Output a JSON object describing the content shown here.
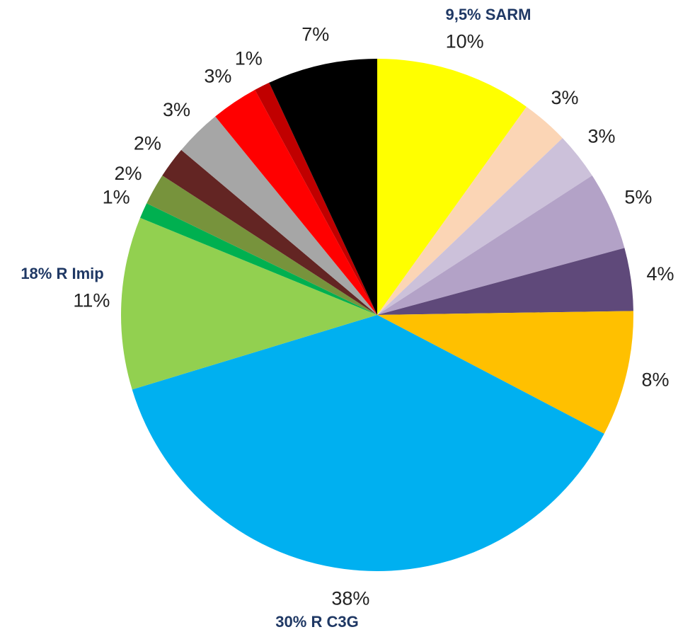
{
  "chart_data": {
    "type": "pie",
    "values": [
      10,
      3,
      3,
      5,
      4,
      8,
      38,
      11,
      1,
      2,
      2,
      3,
      3,
      1,
      7
    ],
    "value_labels": [
      "10%",
      "3%",
      "3%",
      "5%",
      "4%",
      "8%",
      "38%",
      "11%",
      "1%",
      "2%",
      "2%",
      "3%",
      "3%",
      "1%",
      "7%"
    ],
    "colors": [
      "#ffff00",
      "#fbd5b5",
      "#ccc1da",
      "#b3a2c7",
      "#5f497a",
      "#ffc000",
      "#00b0f0",
      "#92d050",
      "#00b050",
      "#77933c",
      "#632523",
      "#a6a6a6",
      "#ff0000",
      "#c00000",
      "#000000"
    ],
    "annotations": [
      "9,5% SARM",
      "18% R Imip",
      "30% R C3G"
    ]
  }
}
